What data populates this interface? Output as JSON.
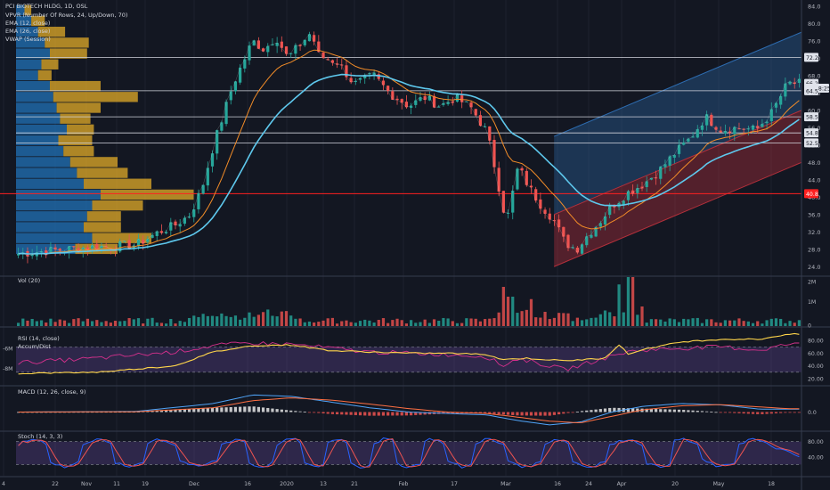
{
  "colors": {
    "background": "#131722",
    "axis_bg": "#131722",
    "separator": "#363c4e",
    "grid": "#1e222d",
    "text": "#d1d4dc",
    "muted": "#b2b5be",
    "up": "#26a69a",
    "down": "#ef5350",
    "ema12": "#f28c28",
    "ema26": "#5ec8ed",
    "vwap_line": "#ffffff",
    "vp_up": "#2173b8",
    "vp_down": "#d6a328",
    "channel_top": "#2d6cb0",
    "channel_bottom": "#b5303b",
    "red_hline": "#ff2020",
    "rsi_line": "#d5308c",
    "accdist_line": "#ffd54a",
    "rsi_band": "#7e57c2",
    "macd_line": "#4fa3f7",
    "signal_line": "#ff7043",
    "hist_up": "#e6e6e6",
    "hist_down": "#ef5350",
    "stoch_k": "#2962ff",
    "stoch_d": "#ef5350"
  },
  "legends": {
    "main": [
      "PCI BIOTECH HLDG, 1D, OSL",
      "VPVR (Number Of Rows, 24, Up/Down, 70)",
      "EMA (12, close)",
      "EMA (26, close)",
      "VWAP (Session)"
    ],
    "volume": "Vol (20)",
    "rsi": [
      "RSI (14, close)",
      "Accum/Dist"
    ],
    "macd": "MACD (12, 26, close, 9)",
    "stoch": "Stoch (14, 3, 3)"
  },
  "axes": {
    "price_ticks": [
      "84.0",
      "80.0",
      "76.0",
      "72.0",
      "68.0",
      "64.0",
      "60.0",
      "56.0",
      "52.0",
      "48.0",
      "44.0",
      "40.0",
      "36.0",
      "32.0",
      "28.0",
      "24.0"
    ],
    "price_labels": [
      {
        "text": "72.2",
        "style": "white",
        "value": 72.2
      },
      {
        "text": "66.2",
        "style": "white",
        "value": 66.2
      },
      {
        "text": "02:28:25",
        "style": "white",
        "value": 65.1
      },
      {
        "text": "64.5",
        "style": "white",
        "value": 64.5
      },
      {
        "text": "58.5",
        "style": "white",
        "value": 58.5
      },
      {
        "text": "54.8",
        "style": "white",
        "value": 54.8
      },
      {
        "text": "52.5",
        "style": "white",
        "value": 52.5
      },
      {
        "text": "40.8",
        "style": "red",
        "value": 40.8
      }
    ],
    "volume_ticks": [
      "2M",
      "1M",
      "0"
    ],
    "rsi_ticks": [
      "80.00",
      "60.00",
      "40.00",
      "20.00"
    ],
    "rsi_left_ticks": [
      "-6M",
      "-8M"
    ],
    "macd_ticks": [
      "0.0"
    ],
    "stoch_ticks": [
      "80.00",
      "40.00"
    ],
    "time_ticks": [
      "4",
      "22",
      "Nov",
      "11",
      "19",
      "Dec",
      "16",
      "2020",
      "13",
      "21",
      "Feb",
      "17",
      "Mar",
      "16",
      "24",
      "Apr",
      "20",
      "May",
      "18"
    ]
  },
  "chart_data": {
    "type": "candlestick",
    "ticker": "PCI BIOTECH HLDG",
    "interval": "1D",
    "exchange": "OSL",
    "price_range": [
      22.0,
      85.0
    ],
    "price_path": [
      [
        0,
        27.0
      ],
      [
        0.09,
        28.5
      ],
      [
        0.15,
        29.0
      ],
      [
        0.18,
        32.0
      ],
      [
        0.2,
        33.5
      ],
      [
        0.22,
        36.0
      ],
      [
        0.235,
        42.0
      ],
      [
        0.25,
        52.0
      ],
      [
        0.275,
        66.0
      ],
      [
        0.3,
        76.0
      ],
      [
        0.315,
        74.0
      ],
      [
        0.33,
        77.0
      ],
      [
        0.345,
        72.0
      ],
      [
        0.375,
        78.0
      ],
      [
        0.385,
        72.5
      ],
      [
        0.41,
        71.0
      ],
      [
        0.43,
        66.0
      ],
      [
        0.455,
        68.0
      ],
      [
        0.475,
        64.0
      ],
      [
        0.5,
        61.0
      ],
      [
        0.52,
        63.0
      ],
      [
        0.54,
        61.0
      ],
      [
        0.56,
        63.0
      ],
      [
        0.58,
        60.5
      ],
      [
        0.6,
        55.0
      ],
      [
        0.61,
        47.0
      ],
      [
        0.625,
        34.0
      ],
      [
        0.64,
        47.0
      ],
      [
        0.655,
        42.0
      ],
      [
        0.67,
        38.0
      ],
      [
        0.685,
        35.0
      ],
      [
        0.7,
        29.5
      ],
      [
        0.715,
        28.0
      ],
      [
        0.73,
        31.5
      ],
      [
        0.745,
        34.5
      ],
      [
        0.76,
        38.0
      ],
      [
        0.78,
        41.0
      ],
      [
        0.8,
        43.0
      ],
      [
        0.82,
        46.0
      ],
      [
        0.84,
        50.0
      ],
      [
        0.86,
        53.5
      ],
      [
        0.88,
        58.5
      ],
      [
        0.9,
        55.5
      ],
      [
        0.92,
        56.0
      ],
      [
        0.945,
        55.5
      ],
      [
        0.965,
        59.5
      ],
      [
        0.985,
        66.2
      ]
    ],
    "vpvr_rows": [
      {
        "price": 83.0,
        "up": 0.05,
        "down": 0.04
      },
      {
        "price": 80.5,
        "up": 0.09,
        "down": 0.08
      },
      {
        "price": 78.0,
        "up": 0.13,
        "down": 0.16
      },
      {
        "price": 75.5,
        "up": 0.17,
        "down": 0.26
      },
      {
        "price": 73.0,
        "up": 0.2,
        "down": 0.22
      },
      {
        "price": 70.5,
        "up": 0.15,
        "down": 0.1
      },
      {
        "price": 68.0,
        "up": 0.13,
        "down": 0.08
      },
      {
        "price": 65.5,
        "up": 0.2,
        "down": 0.3
      },
      {
        "price": 63.0,
        "up": 0.22,
        "down": 0.5
      },
      {
        "price": 60.5,
        "up": 0.24,
        "down": 0.26
      },
      {
        "price": 58.0,
        "up": 0.26,
        "down": 0.18
      },
      {
        "price": 55.5,
        "up": 0.3,
        "down": 0.16
      },
      {
        "price": 53.0,
        "up": 0.25,
        "down": 0.2
      },
      {
        "price": 50.5,
        "up": 0.28,
        "down": 0.18
      },
      {
        "price": 48.0,
        "up": 0.32,
        "down": 0.28
      },
      {
        "price": 45.5,
        "up": 0.36,
        "down": 0.3
      },
      {
        "price": 43.0,
        "up": 0.4,
        "down": 0.4
      },
      {
        "price": 40.5,
        "up": 0.5,
        "down": 0.55
      },
      {
        "price": 38.0,
        "up": 0.45,
        "down": 0.3
      },
      {
        "price": 35.5,
        "up": 0.42,
        "down": 0.2
      },
      {
        "price": 33.0,
        "up": 0.4,
        "down": 0.22
      },
      {
        "price": 30.5,
        "up": 0.45,
        "down": 0.35
      },
      {
        "price": 28.0,
        "up": 0.35,
        "down": 0.25
      }
    ],
    "horizontal_levels": [
      72.2,
      64.5,
      58.5,
      54.8,
      52.5
    ],
    "red_level": 40.8,
    "regression_channel": {
      "start": [
        0.685,
        36.0
      ],
      "end": [
        1.0,
        60.0
      ],
      "upper_offset": 18.0,
      "lower_offset": 12.0
    },
    "volume_spikes": [
      {
        "x": 0.62,
        "v": 0.8
      },
      {
        "x": 0.63,
        "v": 0.6
      },
      {
        "x": 0.655,
        "v": 0.55
      },
      {
        "x": 0.77,
        "v": 0.85
      },
      {
        "x": 0.785,
        "v": 1.0
      },
      {
        "x": 0.8,
        "v": 0.4
      }
    ],
    "rsi_path": [
      [
        0,
        45
      ],
      [
        0.1,
        52
      ],
      [
        0.2,
        62
      ],
      [
        0.25,
        72
      ],
      [
        0.3,
        76
      ],
      [
        0.35,
        74
      ],
      [
        0.4,
        68
      ],
      [
        0.45,
        62
      ],
      [
        0.5,
        60
      ],
      [
        0.55,
        58
      ],
      [
        0.6,
        55
      ],
      [
        0.62,
        40
      ],
      [
        0.64,
        52
      ],
      [
        0.7,
        34
      ],
      [
        0.75,
        52
      ],
      [
        0.78,
        62
      ],
      [
        0.8,
        65
      ],
      [
        0.85,
        68
      ],
      [
        0.9,
        70
      ],
      [
        0.95,
        65
      ],
      [
        0.985,
        74
      ]
    ],
    "accdist_path": [
      [
        0,
        28
      ],
      [
        0.1,
        30
      ],
      [
        0.2,
        40
      ],
      [
        0.25,
        62
      ],
      [
        0.3,
        72
      ],
      [
        0.35,
        73
      ],
      [
        0.4,
        64
      ],
      [
        0.45,
        62
      ],
      [
        0.5,
        60
      ],
      [
        0.55,
        60
      ],
      [
        0.6,
        58
      ],
      [
        0.62,
        50
      ],
      [
        0.65,
        52
      ],
      [
        0.7,
        48
      ],
      [
        0.75,
        52
      ],
      [
        0.77,
        74
      ],
      [
        0.78,
        58
      ],
      [
        0.8,
        66
      ],
      [
        0.85,
        78
      ],
      [
        0.9,
        82
      ],
      [
        0.95,
        82
      ],
      [
        0.985,
        90
      ]
    ],
    "macd_path": [
      [
        0,
        0.0
      ],
      [
        0.15,
        0.2
      ],
      [
        0.25,
        3.0
      ],
      [
        0.3,
        6.0
      ],
      [
        0.35,
        5.5
      ],
      [
        0.4,
        3.5
      ],
      [
        0.45,
        1.5
      ],
      [
        0.5,
        0.0
      ],
      [
        0.55,
        -0.5
      ],
      [
        0.6,
        -1.0
      ],
      [
        0.64,
        -3.0
      ],
      [
        0.68,
        -4.5
      ],
      [
        0.72,
        -3.5
      ],
      [
        0.76,
        0.0
      ],
      [
        0.8,
        2.0
      ],
      [
        0.85,
        3.0
      ],
      [
        0.9,
        2.5
      ],
      [
        0.95,
        1.0
      ],
      [
        0.985,
        1.0
      ]
    ],
    "signal_path": [
      [
        0,
        0.0
      ],
      [
        0.15,
        0.1
      ],
      [
        0.25,
        1.5
      ],
      [
        0.3,
        4.0
      ],
      [
        0.35,
        5.0
      ],
      [
        0.4,
        4.2
      ],
      [
        0.45,
        2.8
      ],
      [
        0.5,
        1.2
      ],
      [
        0.55,
        0.0
      ],
      [
        0.6,
        -0.5
      ],
      [
        0.64,
        -1.8
      ],
      [
        0.68,
        -3.2
      ],
      [
        0.72,
        -3.8
      ],
      [
        0.76,
        -1.5
      ],
      [
        0.8,
        0.8
      ],
      [
        0.85,
        2.2
      ],
      [
        0.9,
        2.6
      ],
      [
        0.95,
        1.8
      ],
      [
        0.985,
        1.2
      ]
    ],
    "stoch_cycle_centers": [
      0.02,
      0.1,
      0.18,
      0.28,
      0.35,
      0.41,
      0.47,
      0.53,
      0.6,
      0.69,
      0.78,
      0.85,
      0.94
    ],
    "stoch_trough_centers": [
      0.06,
      0.14,
      0.23,
      0.31,
      0.38,
      0.44,
      0.5,
      0.57,
      0.65,
      0.73,
      0.82,
      0.9
    ]
  }
}
